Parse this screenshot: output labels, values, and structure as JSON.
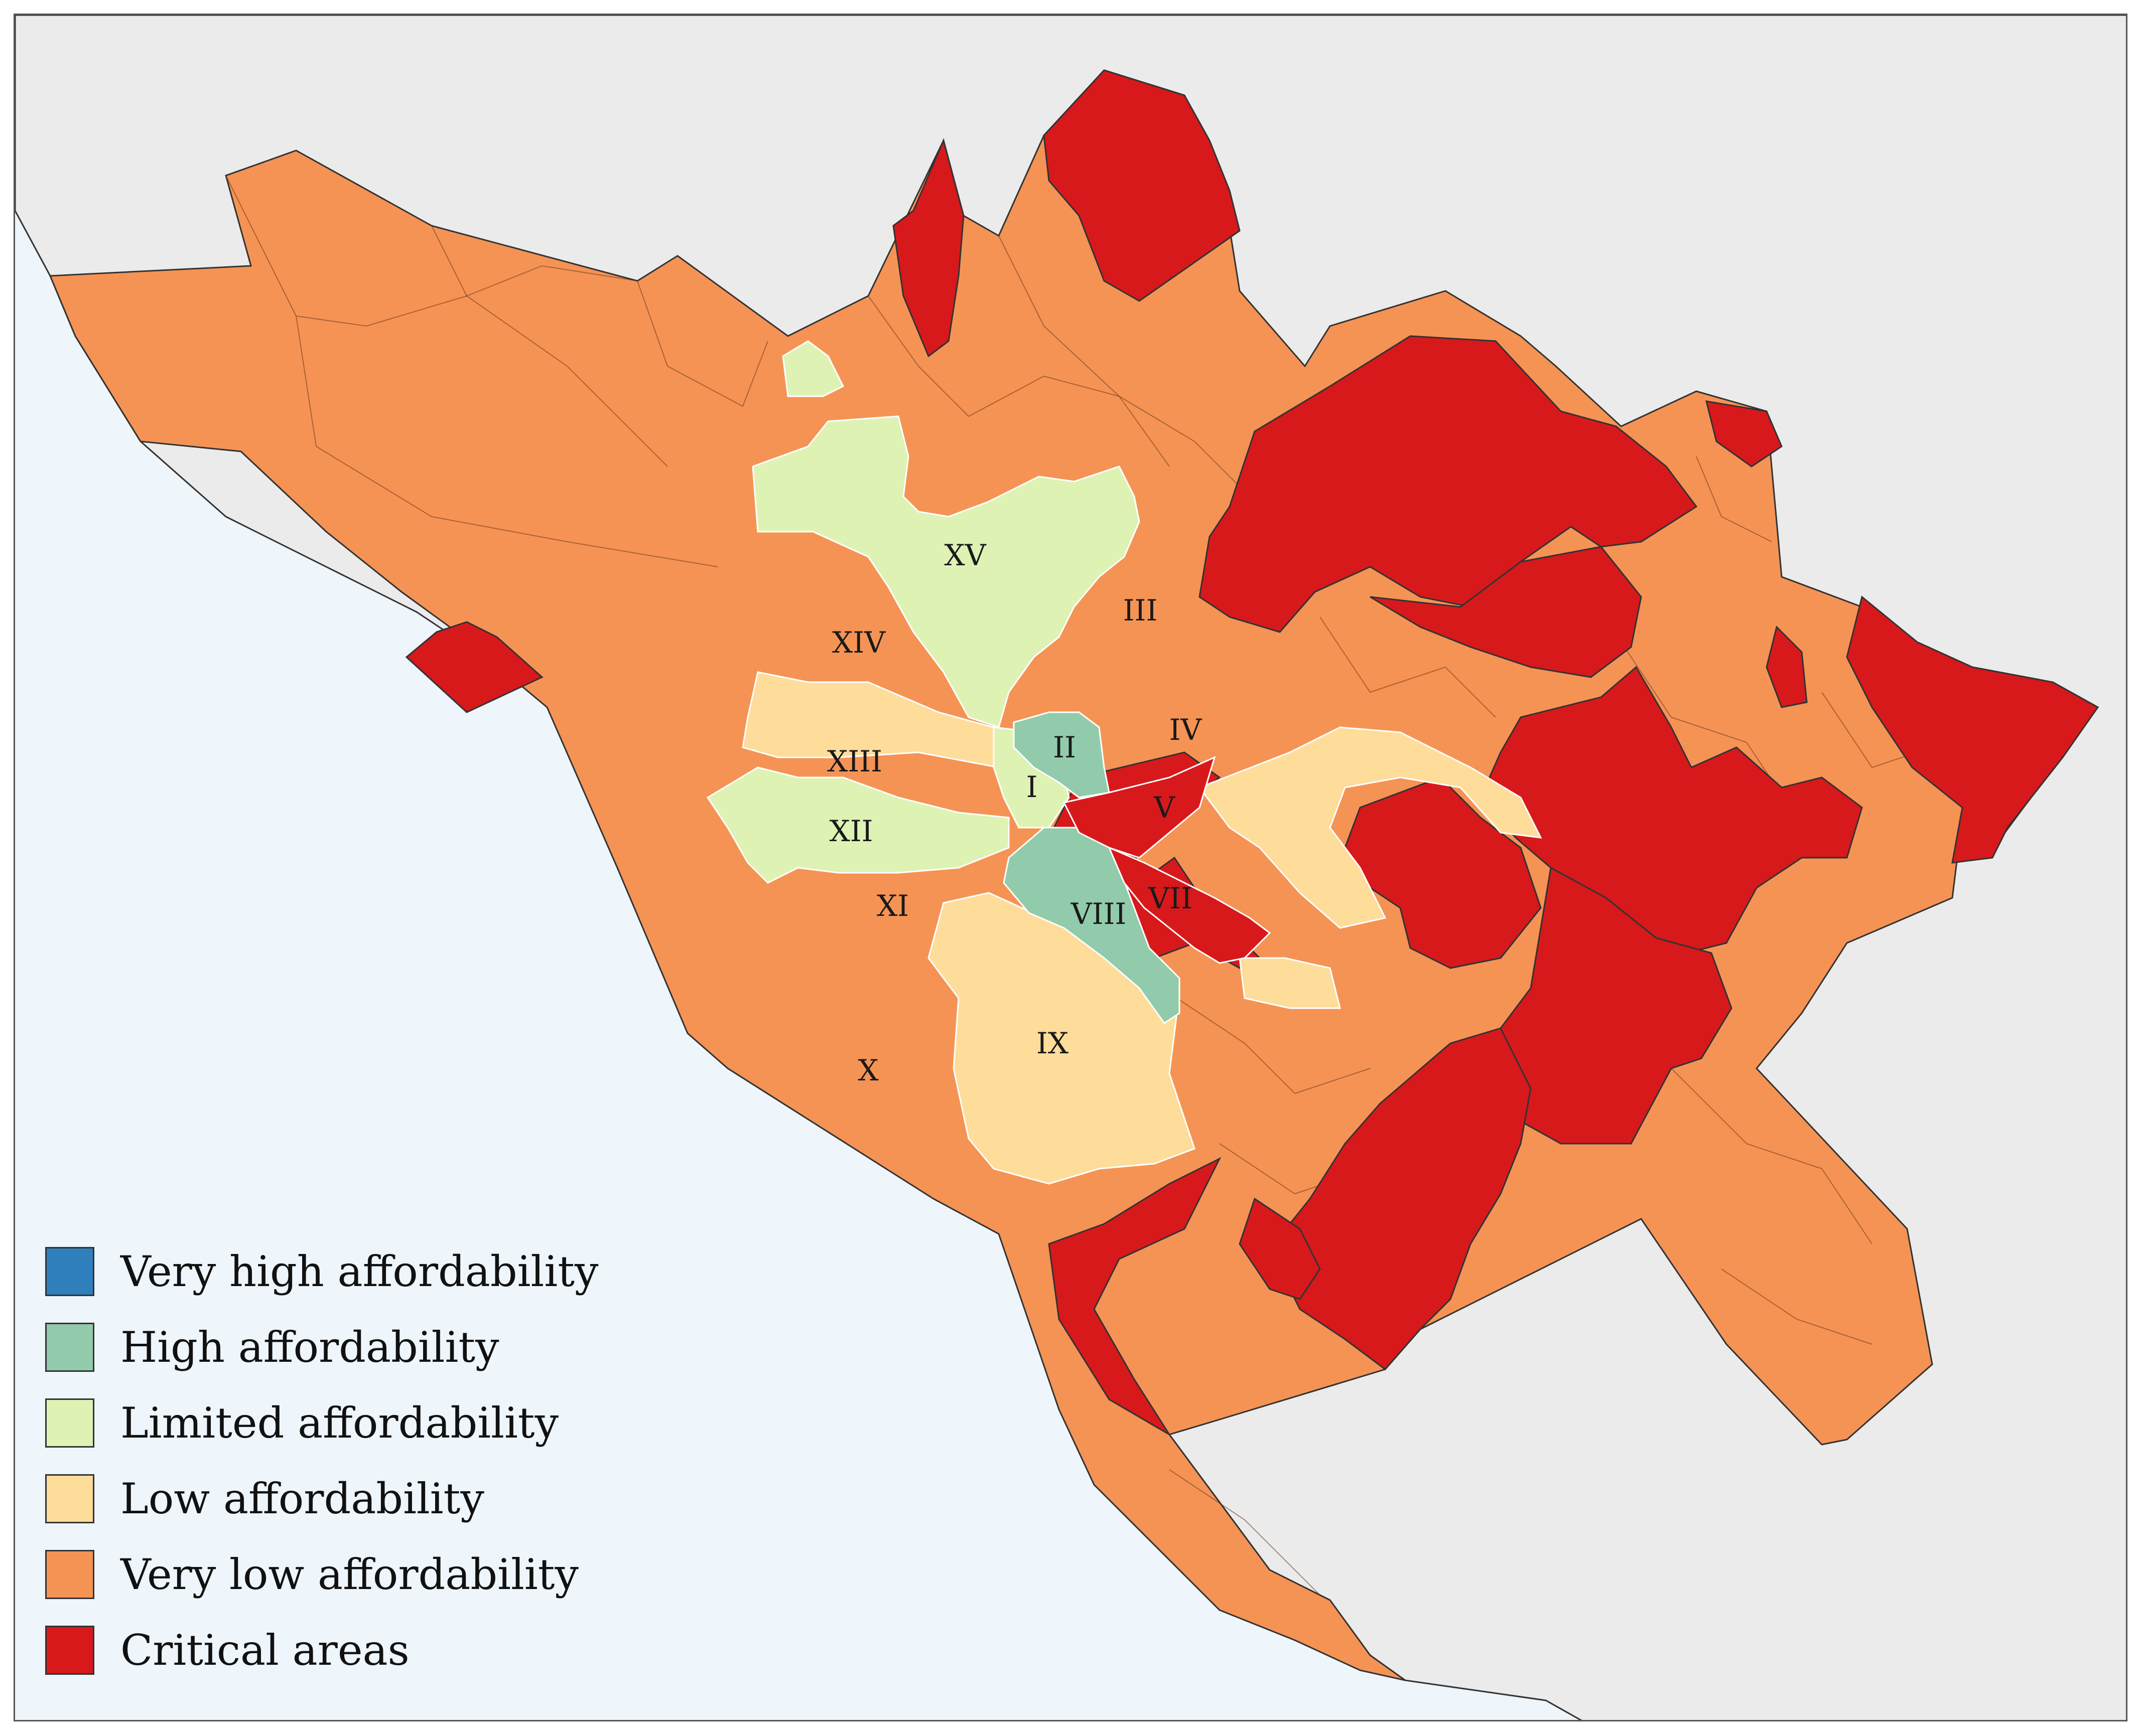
{
  "colors": {
    "sea": "#eef5fb",
    "land_outside": "#ebebeb",
    "border": "#444444",
    "inner_border": "#ffffff"
  },
  "legend": {
    "items": [
      {
        "label": "Very high affordability",
        "color": "#2f7fbc"
      },
      {
        "label": "High affordability",
        "color": "#91cbab"
      },
      {
        "label": "Limited affordability",
        "color": "#def2b4"
      },
      {
        "label": "Low affordability",
        "color": "#fedc9a"
      },
      {
        "label": "Very low affordability",
        "color": "#f59355"
      },
      {
        "label": "Critical areas",
        "color": "#d7191c"
      }
    ]
  },
  "districts": [
    {
      "id": "I",
      "label": "I",
      "class": "Limited affordability"
    },
    {
      "id": "II",
      "label": "II",
      "class": "High affordability"
    },
    {
      "id": "III",
      "label": "III",
      "class": "Very low affordability"
    },
    {
      "id": "IV",
      "label": "IV",
      "class": "Very low affordability"
    },
    {
      "id": "V",
      "label": "V",
      "class": "Critical areas"
    },
    {
      "id": "VII",
      "label": "VII",
      "class": "Critical areas"
    },
    {
      "id": "VIII",
      "label": "VIII",
      "class": "High affordability"
    },
    {
      "id": "IX",
      "label": "IX",
      "class": "Low affordability"
    },
    {
      "id": "X",
      "label": "X",
      "class": "Very low affordability"
    },
    {
      "id": "XI",
      "label": "XI",
      "class": "Very low affordability"
    },
    {
      "id": "XII",
      "label": "XII",
      "class": "Limited affordability"
    },
    {
      "id": "XIII",
      "label": "XIII",
      "class": "Low affordability"
    },
    {
      "id": "XIV",
      "label": "XIV",
      "class": "Very low affordability"
    },
    {
      "id": "XV",
      "label": "XV",
      "class": "Limited affordability"
    }
  ]
}
